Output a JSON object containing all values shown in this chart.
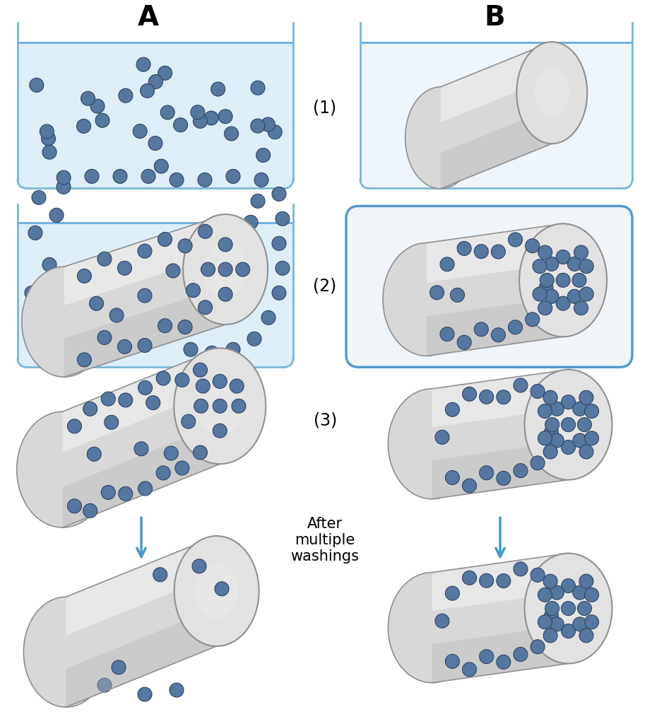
{
  "title_A": "A",
  "title_B": "B",
  "label_1": "(1)",
  "label_2": "(2)",
  "label_3": "(3)",
  "after_text": "After\nmultiple\nwashings",
  "bg_color": "#ffffff",
  "liquid_color": "#ddeef8",
  "liquid_top_color": "#eef5fb",
  "liquid_border_color": "#6aabe0",
  "tank_border_color": "#7ab5d8",
  "dot_color": "#5577a0",
  "dot_edge_color": "#334466",
  "dot_color_light": "#7799bb",
  "cyl_body_light": "#e8e8e8",
  "cyl_body_mid": "#d0d0d0",
  "cyl_body_dark": "#b8b8b8",
  "cyl_edge": "#909090",
  "rounded_box_border": "#5599cc",
  "rounded_box_bg": "#f0f5fa",
  "arrow_color": "#4499cc"
}
